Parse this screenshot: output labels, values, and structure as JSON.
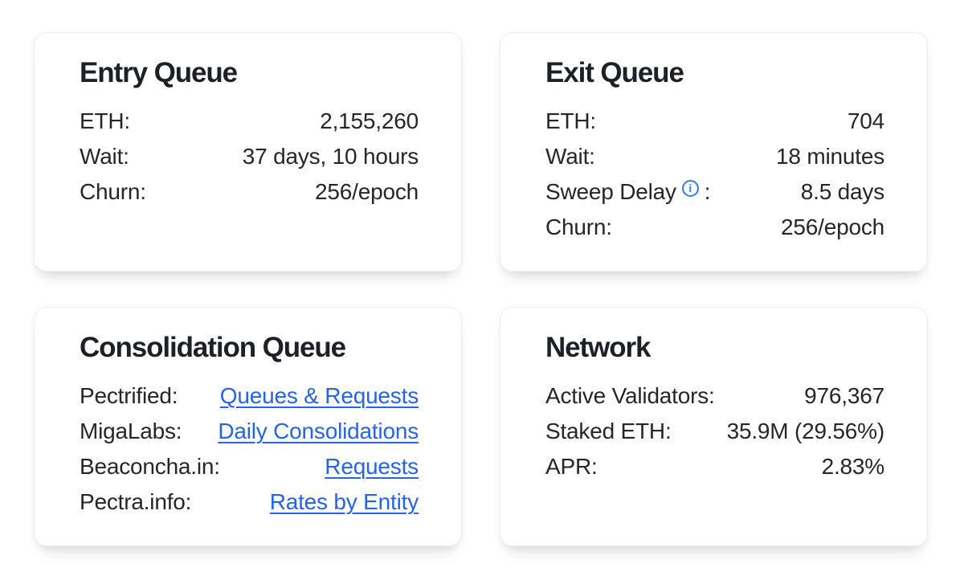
{
  "colors": {
    "page_background": "#ffffff",
    "card_background": "#ffffff",
    "card_border": "#efefef",
    "title_text": "#1d2127",
    "body_text": "#23272c",
    "link_color": "#2563eb",
    "info_icon_color": "#2e7cf6"
  },
  "cards": [
    {
      "id": "entry-queue",
      "title": "Entry Queue",
      "rows": [
        {
          "label": "ETH:",
          "value": "2,155,260"
        },
        {
          "label": "Wait:",
          "value": "37 days, 10 hours"
        },
        {
          "label": "Churn:",
          "value": "256/epoch"
        }
      ]
    },
    {
      "id": "exit-queue",
      "title": "Exit Queue",
      "rows": [
        {
          "label": "ETH:",
          "value": "704"
        },
        {
          "label": "Wait:",
          "value": "18 minutes"
        },
        {
          "label": "Sweep Delay",
          "info_icon_glyph": "i",
          "label_suffix": ":",
          "value": "8.5 days"
        },
        {
          "label": "Churn:",
          "value": "256/epoch"
        }
      ]
    },
    {
      "id": "consolidation-queue",
      "title": "Consolidation Queue",
      "rows": [
        {
          "label": "Pectrified:",
          "link": "Queues & Requests"
        },
        {
          "label": "MigaLabs:",
          "link": "Daily Consolidations"
        },
        {
          "label": "Beaconcha.in:",
          "link": "Requests"
        },
        {
          "label": "Pectra.info:",
          "link": "Rates by Entity"
        }
      ]
    },
    {
      "id": "network",
      "title": "Network",
      "rows": [
        {
          "label": "Active Validators:",
          "value": "976,367"
        },
        {
          "label": "Staked ETH:",
          "value": "35.9M (29.56%)"
        },
        {
          "label": "APR:",
          "value": "2.83%"
        }
      ]
    }
  ]
}
